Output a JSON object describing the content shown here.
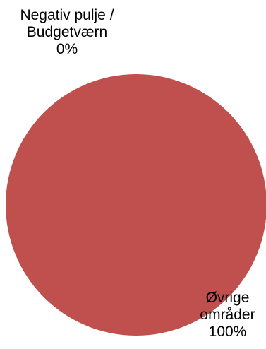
{
  "chart_data": {
    "type": "pie",
    "categories": [
      "Negativ pulje / Budgetværn",
      "Øvrige områder"
    ],
    "values": [
      0,
      100
    ],
    "data_labels": [
      {
        "category": "Negativ pulje / Budgetværn",
        "percent": "0%"
      },
      {
        "category": "Øvrige områder",
        "percent": "100%"
      }
    ],
    "colors": {
      "slice_negativ": "#4F81BD",
      "slice_ovrige": "#C0504D"
    },
    "legend": "none"
  }
}
